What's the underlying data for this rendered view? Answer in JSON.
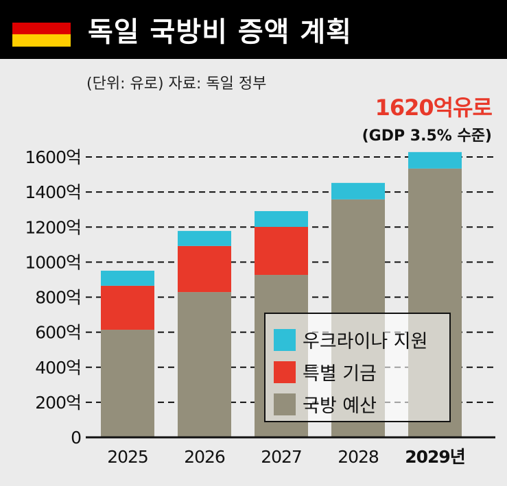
{
  "header": {
    "title": "독일 국방비 증액 계획",
    "flag_colors": [
      "#000000",
      "#dd0000",
      "#ffce00"
    ]
  },
  "subtitle": "(단위: 유로)  자료: 독일 정부",
  "annotation": {
    "amount": "1620억유로",
    "note": "(GDP 3.5% 수준)"
  },
  "chart_data": {
    "type": "bar",
    "stacked": true,
    "title": "독일 국방비 증액 계획",
    "unit": "억 유로",
    "categories": [
      "2025",
      "2026",
      "2027",
      "2028",
      "2029년"
    ],
    "series": [
      {
        "name": "국방 예산",
        "color": "#948f7b",
        "values": [
          614,
          829,
          927,
          1358,
          1534
        ]
      },
      {
        "name": "특별 기금",
        "color": "#e8392a",
        "values": [
          251,
          263,
          274,
          0,
          0
        ]
      },
      {
        "name": "우크라이나 지원",
        "color": "#2fbfd8",
        "values": [
          86,
          86,
          90,
          94,
          94
        ]
      }
    ],
    "y_ticks": [
      "0",
      "200억",
      "400억",
      "600억",
      "800억",
      "1000억",
      "1200억",
      "1400억",
      "1600억"
    ],
    "y_tick_values": [
      0,
      200,
      400,
      600,
      800,
      1000,
      1200,
      1400,
      1600
    ],
    "ylim": [
      0,
      1600
    ],
    "grid": "dashed horizontal",
    "legend": {
      "placement": "bottom-right",
      "items": [
        "우크라이나 지원",
        "특별 기금",
        "국방 예산"
      ]
    }
  }
}
